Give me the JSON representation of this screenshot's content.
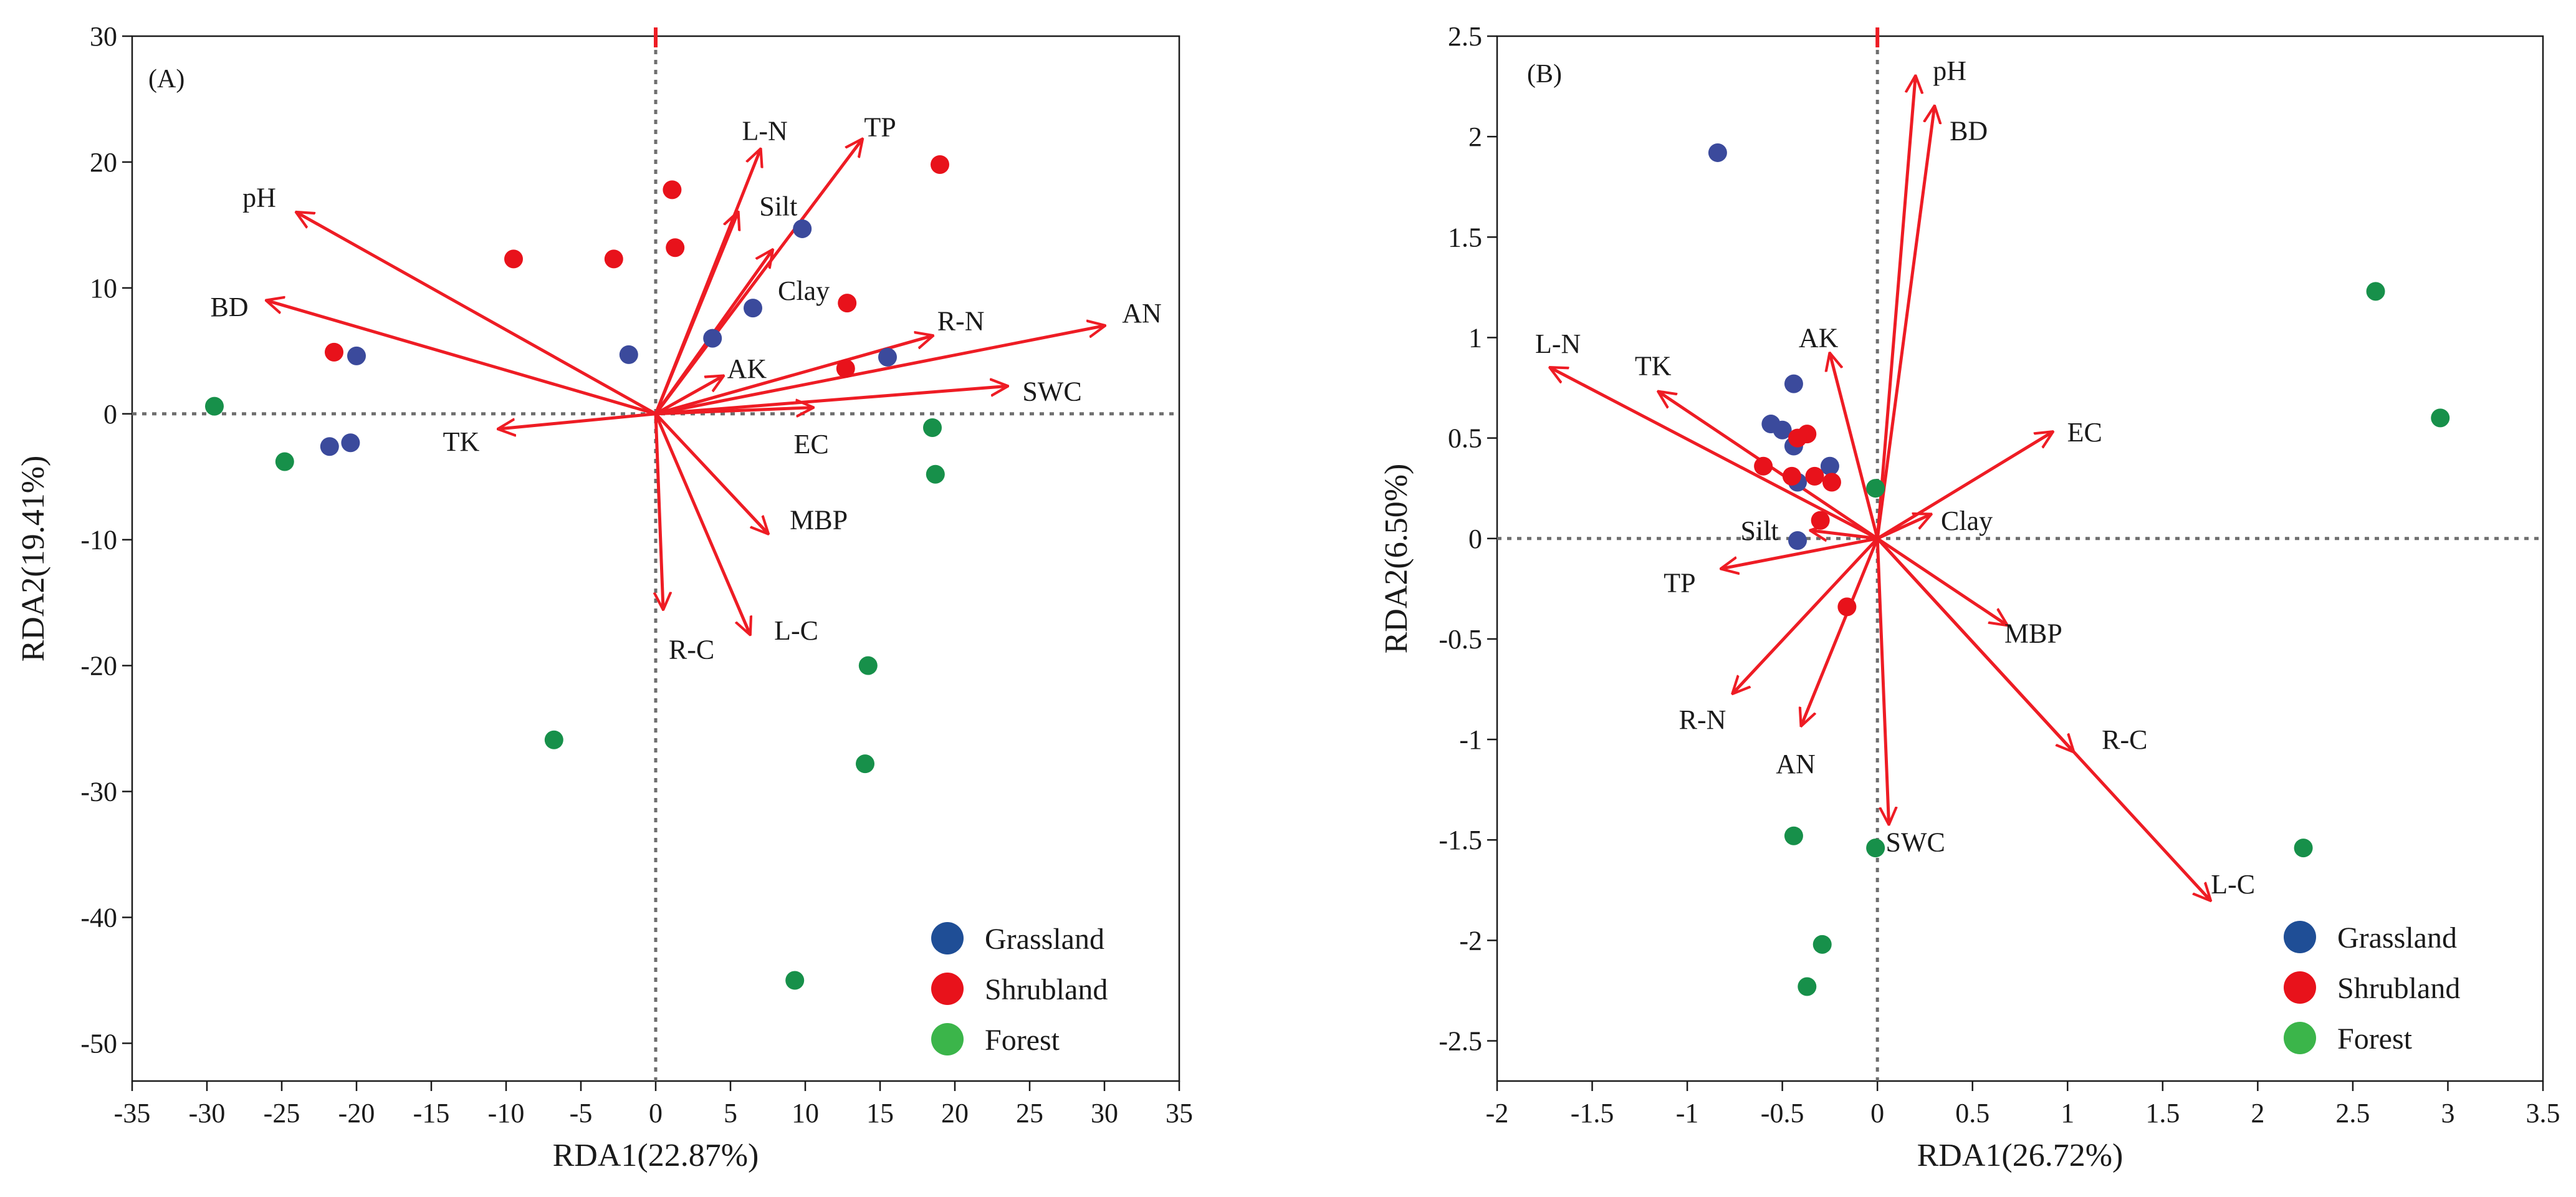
{
  "legend": [
    {
      "name": "Grassland",
      "color": "#1f4e96"
    },
    {
      "name": "Shrubland",
      "color": "#e8121b"
    },
    {
      "name": "Forest",
      "color": "#3bb54a"
    }
  ],
  "point_colors": {
    "Grassland": "#3b4a9c",
    "Shrubland": "#e8121b",
    "Forest": "#17904a"
  },
  "arrow_color": "#ee1c24",
  "chart_data": [
    {
      "type": "scatter",
      "panel": "(A)",
      "xlabel": "RDA1(22.87%)",
      "ylabel": "RDA2(19.41%)",
      "xlim": [
        -35,
        35
      ],
      "ylim": [
        -53,
        30
      ],
      "xticks": [
        -35,
        -30,
        -25,
        -20,
        -15,
        -10,
        -5,
        0,
        5,
        10,
        15,
        20,
        25,
        30,
        35
      ],
      "yticks": [
        -50,
        -40,
        -30,
        -20,
        -10,
        0,
        10,
        20,
        30
      ],
      "arrows": [
        {
          "name": "pH",
          "x": -24,
          "y": 16,
          "lx": -26.5,
          "ly": 17.2
        },
        {
          "name": "BD",
          "x": -26,
          "y": 9,
          "lx": -28.5,
          "ly": 8.5
        },
        {
          "name": "TK",
          "x": -10.5,
          "y": -1.2,
          "lx": -13,
          "ly": -2.2
        },
        {
          "name": "L-N",
          "x": 7,
          "y": 21,
          "lx": 7.3,
          "ly": 22.5
        },
        {
          "name": "TP",
          "x": 13.8,
          "y": 21.8,
          "lx": 15,
          "ly": 22.8
        },
        {
          "name": "Silt",
          "x": 5.5,
          "y": 16,
          "lx": 8.2,
          "ly": 16.5
        },
        {
          "name": "Clay",
          "x": 7.8,
          "y": 13,
          "lx": 9.9,
          "ly": 9.8
        },
        {
          "name": "AK",
          "x": 4.5,
          "y": 3,
          "lx": 6.1,
          "ly": 3.6
        },
        {
          "name": "EC",
          "x": 10.5,
          "y": 0.5,
          "lx": 10.4,
          "ly": -2.4
        },
        {
          "name": "R-N",
          "x": 18.5,
          "y": 6.2,
          "lx": 20.4,
          "ly": 7.4
        },
        {
          "name": "AN",
          "x": 30,
          "y": 7,
          "lx": 32.5,
          "ly": 8
        },
        {
          "name": "SWC",
          "x": 23.5,
          "y": 2.2,
          "lx": 26.5,
          "ly": 1.8
        },
        {
          "name": "MBP",
          "x": 7.5,
          "y": -9.5,
          "lx": 10.9,
          "ly": -8.4
        },
        {
          "name": "L-C",
          "x": 6.3,
          "y": -17.5,
          "lx": 9.4,
          "ly": -17.2
        },
        {
          "name": "R-C",
          "x": 0.5,
          "y": -15.5,
          "lx": 2.4,
          "ly": -18.7
        }
      ],
      "points": [
        {
          "group": "Grassland",
          "x": 9.8,
          "y": 14.7
        },
        {
          "group": "Grassland",
          "x": 6.5,
          "y": 8.4
        },
        {
          "group": "Grassland",
          "x": 3.8,
          "y": 6.0
        },
        {
          "group": "Grassland",
          "x": -1.8,
          "y": 4.7
        },
        {
          "group": "Grassland",
          "x": 15.5,
          "y": 4.5
        },
        {
          "group": "Grassland",
          "x": -20,
          "y": 4.6
        },
        {
          "group": "Grassland",
          "x": -21.8,
          "y": -2.6
        },
        {
          "group": "Grassland",
          "x": -20.4,
          "y": -2.3
        },
        {
          "group": "Shrubland",
          "x": 19,
          "y": 19.8
        },
        {
          "group": "Shrubland",
          "x": 1.1,
          "y": 17.8
        },
        {
          "group": "Shrubland",
          "x": 1.3,
          "y": 13.2
        },
        {
          "group": "Shrubland",
          "x": -9.5,
          "y": 12.3
        },
        {
          "group": "Shrubland",
          "x": -2.8,
          "y": 12.3
        },
        {
          "group": "Shrubland",
          "x": 12.8,
          "y": 8.8
        },
        {
          "group": "Shrubland",
          "x": 12.7,
          "y": 3.6
        },
        {
          "group": "Shrubland",
          "x": -21.5,
          "y": 4.9
        },
        {
          "group": "Forest",
          "x": -29.5,
          "y": 0.6
        },
        {
          "group": "Forest",
          "x": -24.8,
          "y": -3.8
        },
        {
          "group": "Forest",
          "x": 18.5,
          "y": -1.1
        },
        {
          "group": "Forest",
          "x": 18.7,
          "y": -4.8
        },
        {
          "group": "Forest",
          "x": 14.2,
          "y": -20.0
        },
        {
          "group": "Forest",
          "x": 14.0,
          "y": -27.8
        },
        {
          "group": "Forest",
          "x": -6.8,
          "y": -25.9
        },
        {
          "group": "Forest",
          "x": 9.3,
          "y": -45.0
        }
      ]
    },
    {
      "type": "scatter",
      "panel": "(B)",
      "xlabel": "RDA1(26.72%)",
      "ylabel": "RDA2(6.50%)",
      "xlim": [
        -2,
        3.5
      ],
      "ylim": [
        -2.7,
        2.5
      ],
      "xticks": [
        -2,
        -1.5,
        -1,
        -0.5,
        0,
        0.5,
        1,
        1.5,
        2,
        2.5,
        3,
        3.5
      ],
      "yticks": [
        -2.5,
        -2,
        -1.5,
        -1,
        -0.5,
        0,
        0.5,
        1,
        1.5,
        2,
        2.5
      ],
      "arrows": [
        {
          "name": "pH",
          "x": 0.2,
          "y": 2.3,
          "lx": 0.38,
          "ly": 2.33
        },
        {
          "name": "BD",
          "x": 0.3,
          "y": 2.15,
          "lx": 0.48,
          "ly": 2.03
        },
        {
          "name": "L-N",
          "x": -1.72,
          "y": 0.85,
          "lx": -1.68,
          "ly": 0.97
        },
        {
          "name": "TK",
          "x": -1.15,
          "y": 0.73,
          "lx": -1.18,
          "ly": 0.86
        },
        {
          "name": "AK",
          "x": -0.25,
          "y": 0.92,
          "lx": -0.31,
          "ly": 1.0
        },
        {
          "name": "EC",
          "x": 0.92,
          "y": 0.53,
          "lx": 1.09,
          "ly": 0.53
        },
        {
          "name": "Clay",
          "x": 0.28,
          "y": 0.12,
          "lx": 0.47,
          "ly": 0.09
        },
        {
          "name": "Silt",
          "x": -0.35,
          "y": 0.04,
          "lx": -0.62,
          "ly": 0.04
        },
        {
          "name": "TP",
          "x": -0.82,
          "y": -0.15,
          "lx": -1.04,
          "ly": -0.22
        },
        {
          "name": "R-N",
          "x": -0.76,
          "y": -0.77,
          "lx": -0.92,
          "ly": -0.9
        },
        {
          "name": "AN",
          "x": -0.4,
          "y": -0.93,
          "lx": -0.43,
          "ly": -1.12
        },
        {
          "name": "SWC",
          "x": 0.06,
          "y": -1.42,
          "lx": 0.2,
          "ly": -1.51
        },
        {
          "name": "MBP",
          "x": 0.68,
          "y": -0.43,
          "lx": 0.82,
          "ly": -0.47
        },
        {
          "name": "R-C",
          "x": 1.03,
          "y": -1.06,
          "lx": 1.3,
          "ly": -1.0
        },
        {
          "name": "L-C",
          "x": 1.75,
          "y": -1.8,
          "lx": 1.87,
          "ly": -1.72
        }
      ],
      "points": [
        {
          "group": "Grassland",
          "x": -0.84,
          "y": 1.92
        },
        {
          "group": "Grassland",
          "x": -0.56,
          "y": 0.57
        },
        {
          "group": "Grassland",
          "x": -0.5,
          "y": 0.54
        },
        {
          "group": "Grassland",
          "x": -0.44,
          "y": 0.77
        },
        {
          "group": "Grassland",
          "x": -0.44,
          "y": 0.46
        },
        {
          "group": "Grassland",
          "x": -0.25,
          "y": 0.36
        },
        {
          "group": "Grassland",
          "x": -0.42,
          "y": 0.28
        },
        {
          "group": "Grassland",
          "x": -0.42,
          "y": -0.01
        },
        {
          "group": "Shrubland",
          "x": -0.37,
          "y": 0.52
        },
        {
          "group": "Shrubland",
          "x": -0.42,
          "y": 0.5
        },
        {
          "group": "Shrubland",
          "x": -0.6,
          "y": 0.36
        },
        {
          "group": "Shrubland",
          "x": -0.45,
          "y": 0.31
        },
        {
          "group": "Shrubland",
          "x": -0.33,
          "y": 0.31
        },
        {
          "group": "Shrubland",
          "x": -0.24,
          "y": 0.28
        },
        {
          "group": "Shrubland",
          "x": -0.3,
          "y": 0.09
        },
        {
          "group": "Shrubland",
          "x": -0.16,
          "y": -0.34
        },
        {
          "group": "Forest",
          "x": 2.62,
          "y": 1.23
        },
        {
          "group": "Forest",
          "x": 2.96,
          "y": 0.6
        },
        {
          "group": "Forest",
          "x": -0.01,
          "y": 0.25
        },
        {
          "group": "Forest",
          "x": 2.24,
          "y": -1.54
        },
        {
          "group": "Forest",
          "x": -0.44,
          "y": -1.48
        },
        {
          "group": "Forest",
          "x": -0.01,
          "y": -1.54
        },
        {
          "group": "Forest",
          "x": -0.29,
          "y": -2.02
        },
        {
          "group": "Forest",
          "x": -0.37,
          "y": -2.23
        }
      ]
    }
  ]
}
